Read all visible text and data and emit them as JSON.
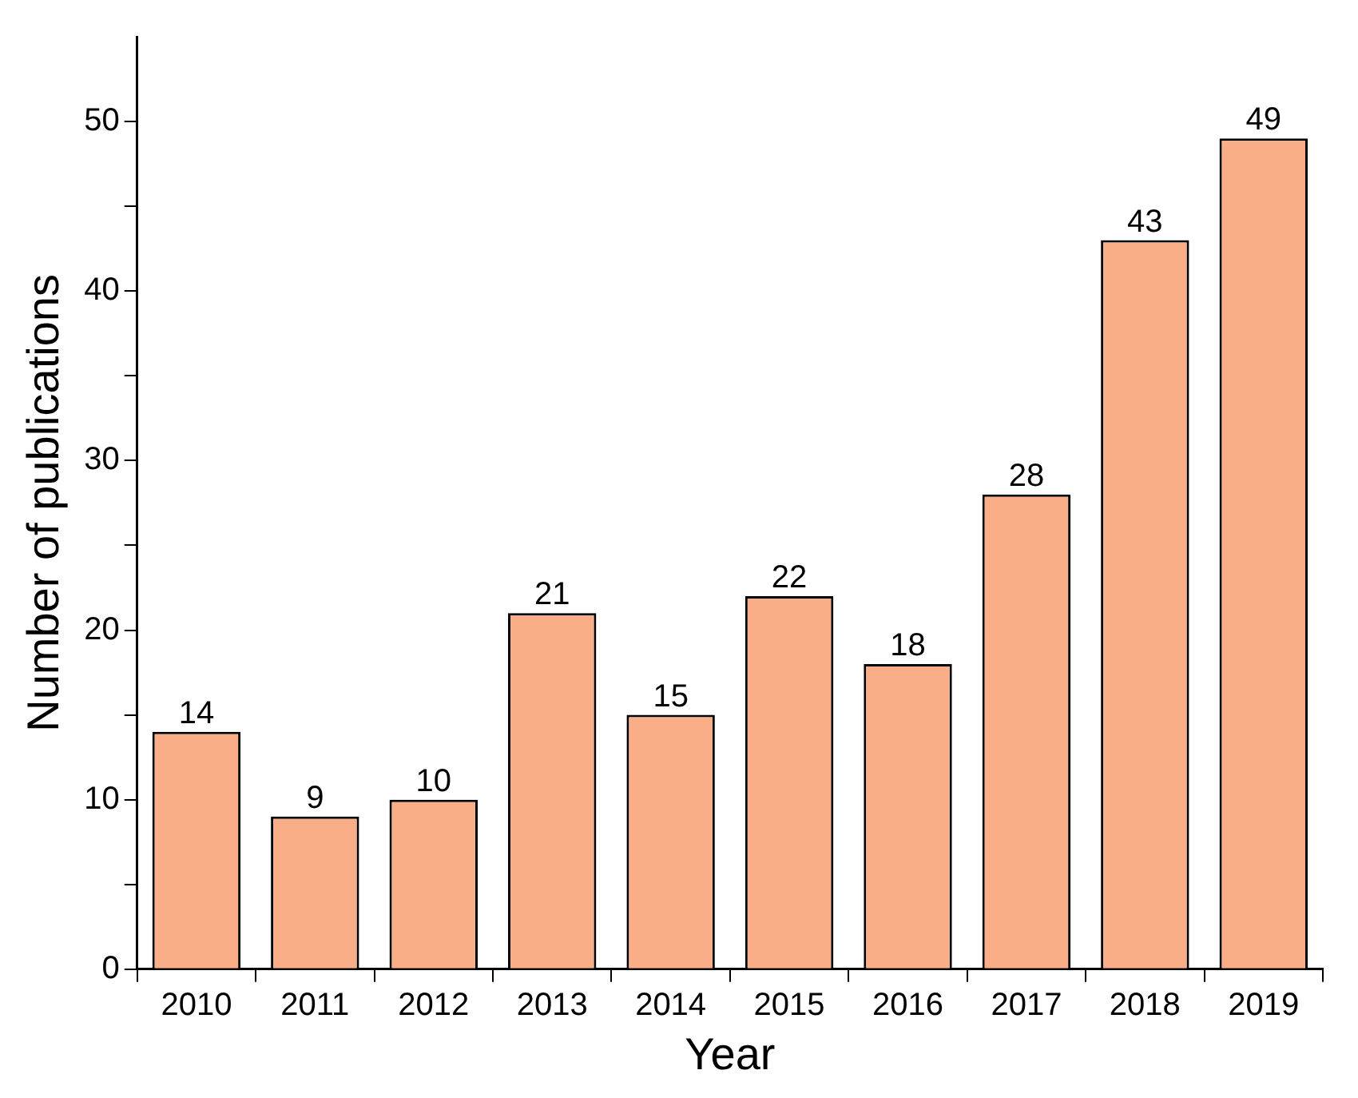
{
  "chart_data": {
    "type": "bar",
    "xlabel": "Year",
    "ylabel": "Number of publications",
    "categories": [
      "2010",
      "2011",
      "2012",
      "2013",
      "2014",
      "2015",
      "2016",
      "2017",
      "2018",
      "2019"
    ],
    "values": [
      14,
      9,
      10,
      21,
      15,
      22,
      18,
      28,
      43,
      49
    ],
    "color": "#f9ae87",
    "ylim": [
      0,
      55
    ],
    "yticks": [
      0,
      {
        "value": 5,
        "label": null
      },
      10,
      {
        "value": 15,
        "label": null
      },
      20,
      {
        "value": 25,
        "label": null
      },
      30,
      {
        "value": 35,
        "label": null
      },
      40,
      {
        "value": 45,
        "label": null
      },
      50
    ],
    "data_labels": true,
    "grid": false,
    "legend": false
  }
}
